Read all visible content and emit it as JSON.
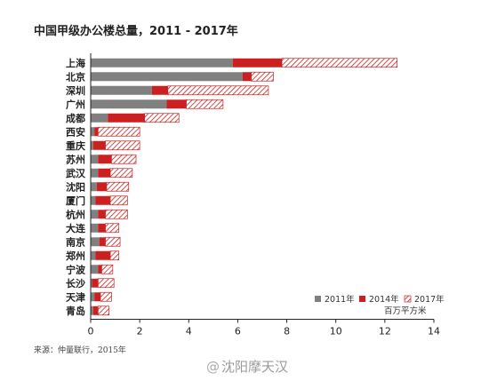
{
  "chart_data": {
    "type": "bar",
    "orientation": "horizontal",
    "stacked": true,
    "title": "中国甲级办公楼总量，2011 - 2017年",
    "unit": "百万平方米",
    "categories": [
      "上海",
      "北京",
      "深圳",
      "广州",
      "成都",
      "西安",
      "重庆",
      "苏州",
      "武汉",
      "沈阳",
      "厦门",
      "杭州",
      "大连",
      "南京",
      "郑州",
      "宁波",
      "长沙",
      "天津",
      "青岛"
    ],
    "series": [
      {
        "name": "2011年",
        "color": "#808080",
        "pattern": "solid",
        "values": [
          5.8,
          6.2,
          2.5,
          3.1,
          0.7,
          0.15,
          0.1,
          0.3,
          0.3,
          0.25,
          0.2,
          0.3,
          0.3,
          0.35,
          0.2,
          0.3,
          0.05,
          0.15,
          0.1
        ]
      },
      {
        "name": "2014年",
        "color": "#cc2020",
        "pattern": "solid",
        "values": [
          2.0,
          0.35,
          0.65,
          0.8,
          1.5,
          0.15,
          0.5,
          0.55,
          0.5,
          0.4,
          0.6,
          0.3,
          0.3,
          0.25,
          0.6,
          0.15,
          0.25,
          0.25,
          0.2
        ]
      },
      {
        "name": "2017年",
        "color": "#cc2020",
        "pattern": "hatched",
        "values": [
          4.7,
          0.9,
          4.1,
          1.5,
          1.4,
          1.7,
          1.4,
          1.0,
          0.9,
          0.9,
          0.7,
          0.9,
          0.55,
          0.6,
          0.35,
          0.45,
          0.65,
          0.45,
          0.45
        ]
      }
    ],
    "xlim": [
      0,
      14
    ],
    "xticks": [
      0,
      2,
      4,
      6,
      8,
      10,
      12,
      14
    ],
    "legend_position": "bottom-right",
    "grid": false
  },
  "source": "来源：仲量联行，2015年",
  "watermark": "沈阳摩天汉",
  "watermark_icon": "weibo-at-icon",
  "watermark_glyph": "@"
}
